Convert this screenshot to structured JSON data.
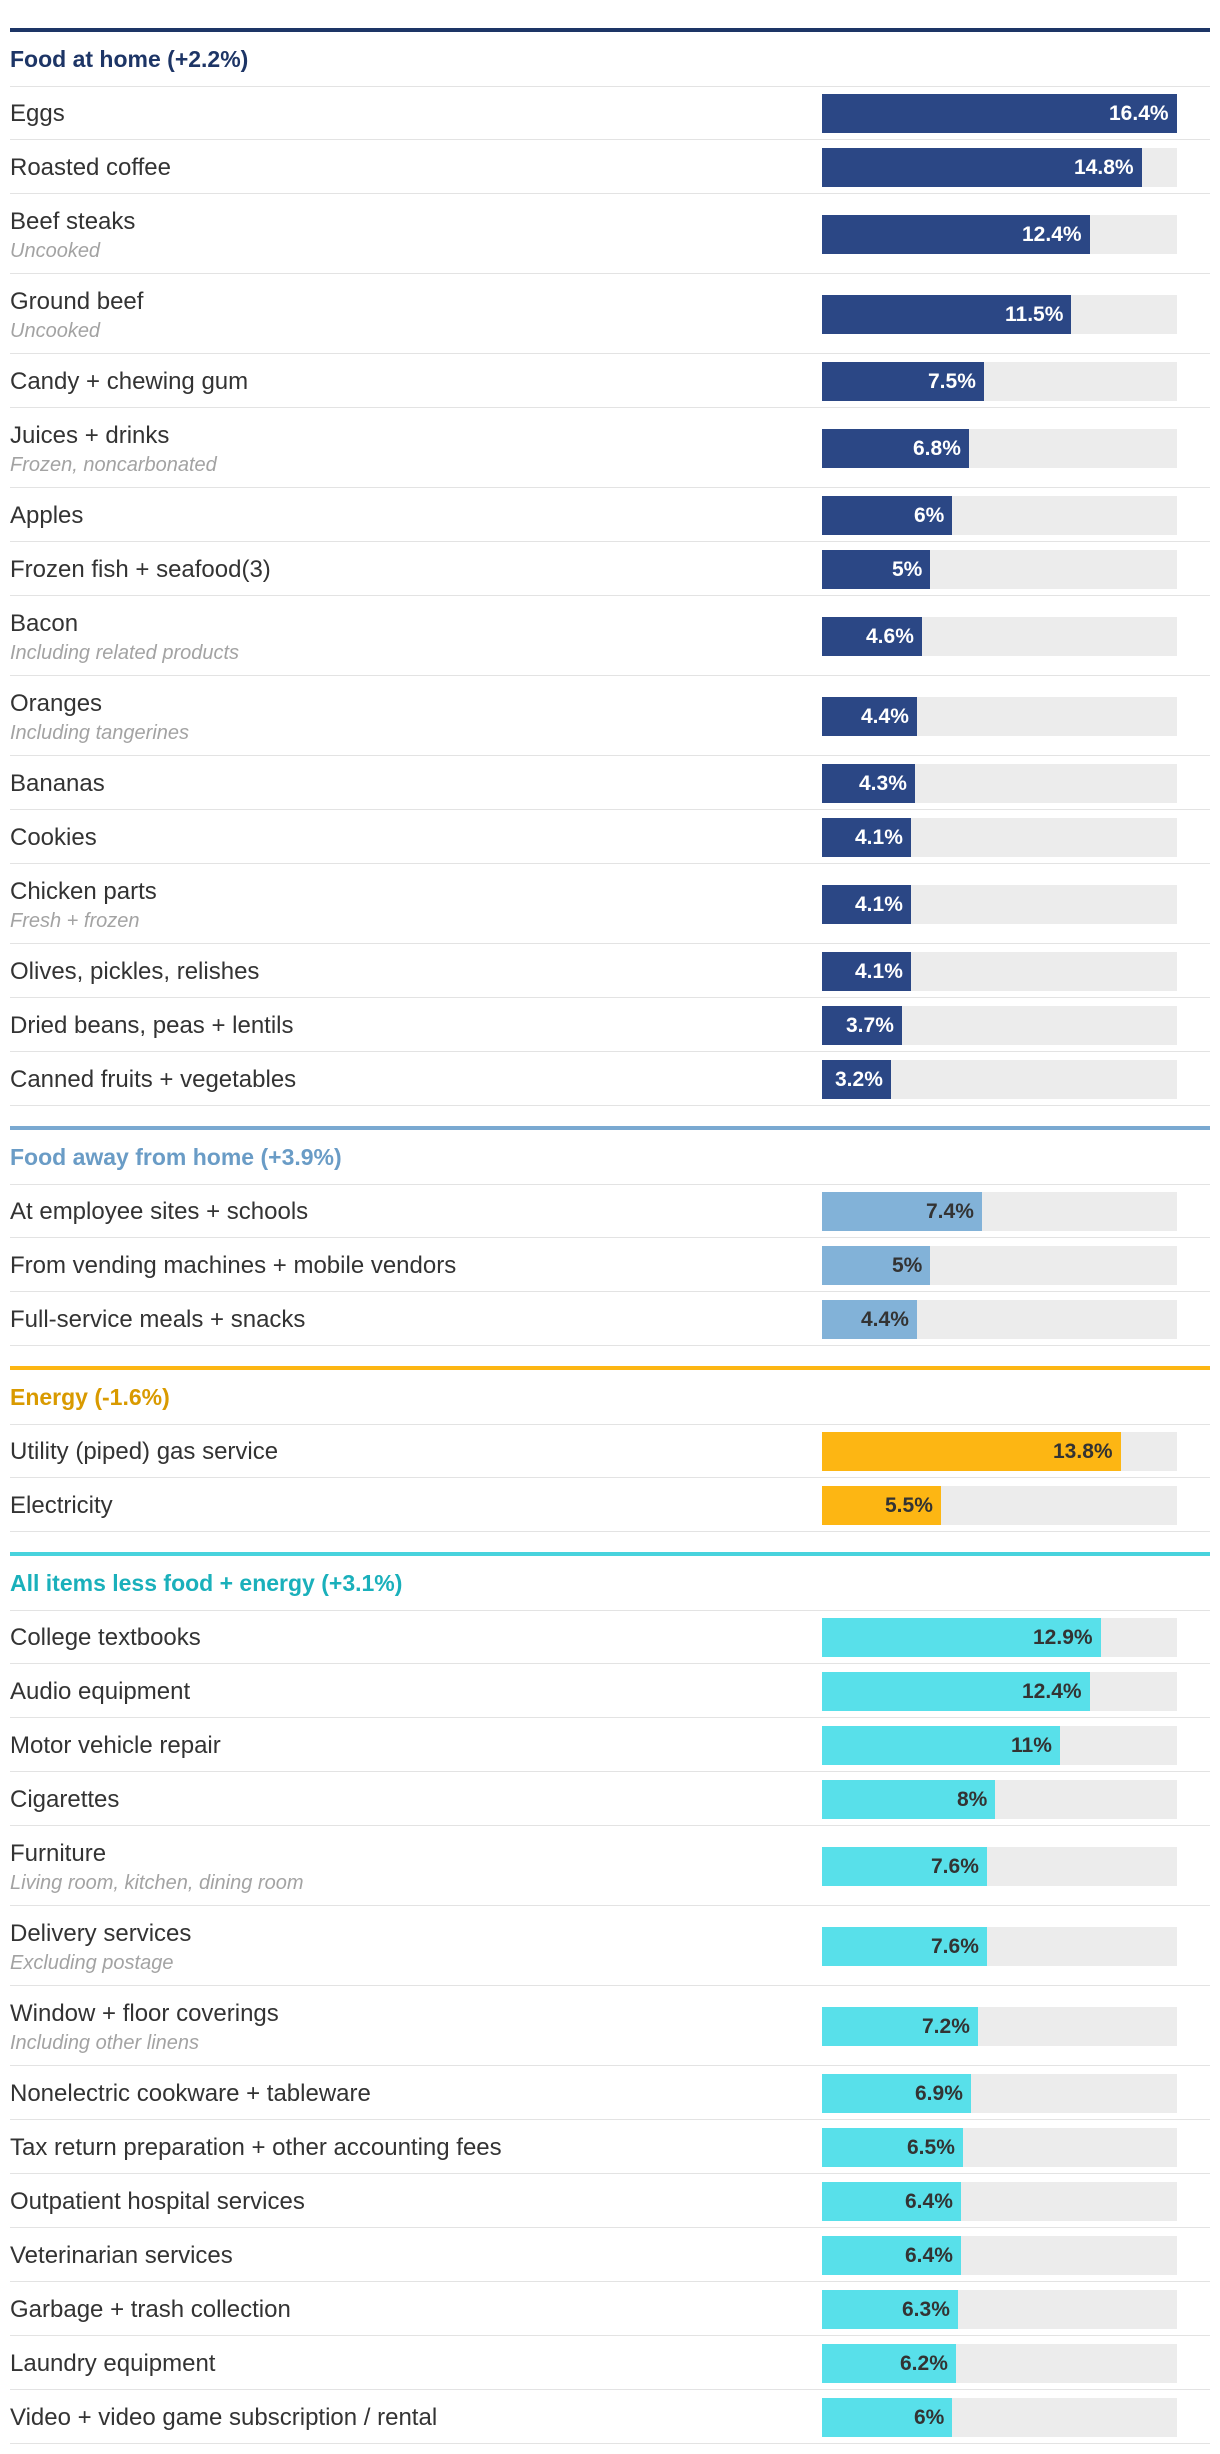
{
  "chart_data": {
    "type": "bar",
    "orientation": "horizontal",
    "value_max": 16.4,
    "sections": [
      {
        "title": "Food at home (+2.2%)",
        "color": "#2b4785",
        "rule_color": "#1d3566",
        "title_color": "#1d3566",
        "label_color_inside": "#ffffff",
        "label_color_outside": "#333333",
        "items": [
          {
            "label": "Eggs",
            "sub": "",
            "value": 16.4,
            "display": "16.4%"
          },
          {
            "label": "Roasted coffee",
            "sub": "",
            "value": 14.8,
            "display": "14.8%"
          },
          {
            "label": "Beef steaks",
            "sub": "Uncooked",
            "value": 12.4,
            "display": "12.4%"
          },
          {
            "label": "Ground beef",
            "sub": "Uncooked",
            "value": 11.5,
            "display": "11.5%"
          },
          {
            "label": "Candy + chewing gum",
            "sub": "",
            "value": 7.5,
            "display": "7.5%"
          },
          {
            "label": "Juices + drinks",
            "sub": "Frozen, noncarbonated",
            "value": 6.8,
            "display": "6.8%"
          },
          {
            "label": "Apples",
            "sub": "",
            "value": 6,
            "display": "6%"
          },
          {
            "label": "Frozen fish + seafood(3)",
            "sub": "",
            "value": 5,
            "display": "5%"
          },
          {
            "label": "Bacon",
            "sub": "Including related products",
            "value": 4.6,
            "display": "4.6%"
          },
          {
            "label": "Oranges",
            "sub": "Including tangerines",
            "value": 4.4,
            "display": "4.4%"
          },
          {
            "label": "Bananas",
            "sub": "",
            "value": 4.3,
            "display": "4.3%"
          },
          {
            "label": "Cookies",
            "sub": "",
            "value": 4.1,
            "display": "4.1%"
          },
          {
            "label": "Chicken parts",
            "sub": "Fresh + frozen",
            "value": 4.1,
            "display": "4.1%"
          },
          {
            "label": "Olives, pickles, relishes",
            "sub": "",
            "value": 4.1,
            "display": "4.1%"
          },
          {
            "label": "Dried beans, peas + lentils",
            "sub": "",
            "value": 3.7,
            "display": "3.7%"
          },
          {
            "label": "Canned fruits + vegetables",
            "sub": "",
            "value": 3.2,
            "display": "3.2%"
          }
        ]
      },
      {
        "title": "Food away from home (+3.9%)",
        "color": "#82b2d8",
        "rule_color": "#7aa9d1",
        "title_color": "#6a9cc6",
        "label_color_inside": "#333333",
        "label_color_outside": "#333333",
        "items": [
          {
            "label": "At employee sites + schools",
            "sub": "",
            "value": 7.4,
            "display": "7.4%"
          },
          {
            "label": "From vending machines + mobile vendors",
            "sub": "",
            "value": 5,
            "display": "5%"
          },
          {
            "label": "Full-service meals + snacks",
            "sub": "",
            "value": 4.4,
            "display": "4.4%"
          }
        ]
      },
      {
        "title": "Energy (-1.6%)",
        "color": "#fdb613",
        "rule_color": "#fdb613",
        "title_color": "#d99a00",
        "label_color_inside": "#333333",
        "label_color_outside": "#333333",
        "items": [
          {
            "label": "Utility (piped) gas service",
            "sub": "",
            "value": 13.8,
            "display": "13.8%"
          },
          {
            "label": "Electricity",
            "sub": "",
            "value": 5.5,
            "display": "5.5%"
          }
        ]
      },
      {
        "title": "All items less food + energy (+3.1%)",
        "color": "#58e0ea",
        "rule_color": "#48d3dd",
        "title_color": "#1ab0bb",
        "label_color_inside": "#333333",
        "label_color_outside": "#333333",
        "items": [
          {
            "label": "College textbooks",
            "sub": "",
            "value": 12.9,
            "display": "12.9%"
          },
          {
            "label": "Audio equipment",
            "sub": "",
            "value": 12.4,
            "display": "12.4%"
          },
          {
            "label": "Motor vehicle repair",
            "sub": "",
            "value": 11,
            "display": "11%"
          },
          {
            "label": "Cigarettes",
            "sub": "",
            "value": 8,
            "display": "8%"
          },
          {
            "label": "Furniture",
            "sub": "Living room, kitchen, dining room",
            "value": 7.6,
            "display": "7.6%"
          },
          {
            "label": "Delivery services",
            "sub": "Excluding postage",
            "value": 7.6,
            "display": "7.6%"
          },
          {
            "label": "Window + floor coverings",
            "sub": "Including other linens",
            "value": 7.2,
            "display": "7.2%"
          },
          {
            "label": "Nonelectric cookware + tableware",
            "sub": "",
            "value": 6.9,
            "display": "6.9%"
          },
          {
            "label": "Tax return preparation + other accounting fees",
            "sub": "",
            "value": 6.5,
            "display": "6.5%"
          },
          {
            "label": "Outpatient hospital services",
            "sub": "",
            "value": 6.4,
            "display": "6.4%"
          },
          {
            "label": "Veterinarian services",
            "sub": "",
            "value": 6.4,
            "display": "6.4%"
          },
          {
            "label": "Garbage + trash collection",
            "sub": "",
            "value": 6.3,
            "display": "6.3%"
          },
          {
            "label": "Laundry equipment",
            "sub": "",
            "value": 6.2,
            "display": "6.2%"
          },
          {
            "label": "Video + video game subscription / rental",
            "sub": "",
            "value": 6,
            "display": "6%"
          }
        ]
      }
    ]
  }
}
